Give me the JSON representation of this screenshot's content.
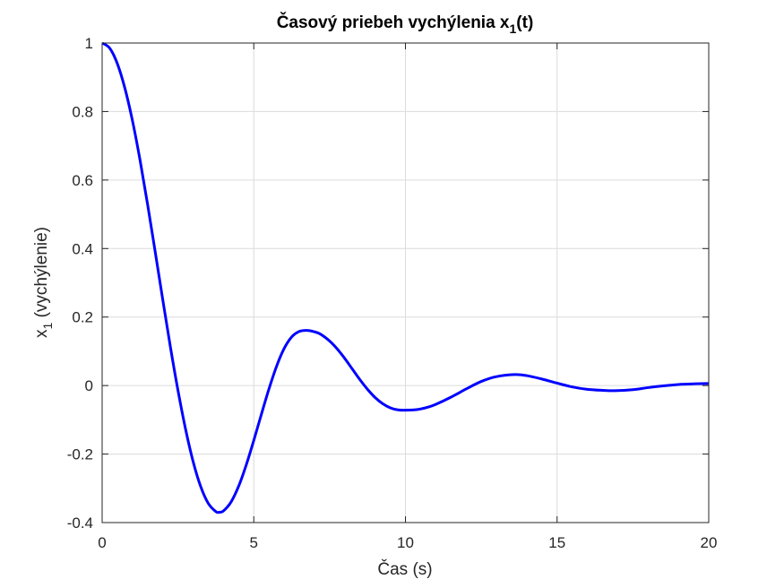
{
  "chart_data": {
    "type": "line",
    "title": {
      "main": "Časový priebeh vychýlenia x",
      "sub": "1",
      "tail": "(t)"
    },
    "xlabel": "Čas (s)",
    "ylabel": {
      "main": "x",
      "sub": "1",
      "tail": " (vychýlenie)"
    },
    "xlim": [
      0,
      20
    ],
    "ylim": [
      -0.4,
      1
    ],
    "xticks": [
      0,
      5,
      10,
      15,
      20
    ],
    "xtick_labels": [
      "0",
      "5",
      "10",
      "15",
      "20"
    ],
    "yticks": [
      -0.4,
      -0.2,
      0,
      0.2,
      0.4,
      0.6,
      0.8,
      1
    ],
    "ytick_labels": [
      "-0.4",
      "-0.2",
      "0",
      "0.2",
      "0.4",
      "0.6",
      "0.8",
      "1"
    ],
    "grid": true,
    "series": [
      {
        "color": "#0000ff",
        "x": [
          0,
          0.25,
          0.5,
          0.75,
          1,
          1.25,
          1.5,
          1.75,
          2,
          2.25,
          2.5,
          2.75,
          3,
          3.25,
          3.5,
          3.75,
          3.85,
          4,
          4.25,
          4.5,
          4.75,
          5,
          5.25,
          5.5,
          5.75,
          6,
          6.25,
          6.5,
          6.75,
          7,
          7.2,
          7.5,
          7.75,
          8,
          8.25,
          8.5,
          8.75,
          9,
          9.25,
          9.5,
          9.75,
          10,
          10.4,
          10.75,
          11,
          11.5,
          12,
          12.5,
          13,
          13.6,
          14,
          14.5,
          15,
          15.5,
          16,
          16.5,
          16.9,
          17.5,
          18,
          18.5,
          19,
          19.5,
          20
        ],
        "y": [
          1,
          0.985,
          0.94,
          0.868,
          0.773,
          0.658,
          0.528,
          0.39,
          0.25,
          0.113,
          -0.014,
          -0.127,
          -0.222,
          -0.295,
          -0.344,
          -0.368,
          -0.37,
          -0.366,
          -0.34,
          -0.294,
          -0.232,
          -0.16,
          -0.084,
          -0.01,
          0.056,
          0.108,
          0.142,
          0.158,
          0.161,
          0.157,
          0.15,
          0.13,
          0.107,
          0.079,
          0.048,
          0.017,
          -0.011,
          -0.035,
          -0.053,
          -0.065,
          -0.071,
          -0.072,
          -0.07,
          -0.063,
          -0.055,
          -0.034,
          -0.01,
          0.012,
          0.026,
          0.032,
          0.029,
          0.019,
          0.007,
          -0.004,
          -0.011,
          -0.014,
          -0.015,
          -0.012,
          -0.006,
          -0.001,
          0.003,
          0.005,
          0.006
        ]
      }
    ]
  }
}
